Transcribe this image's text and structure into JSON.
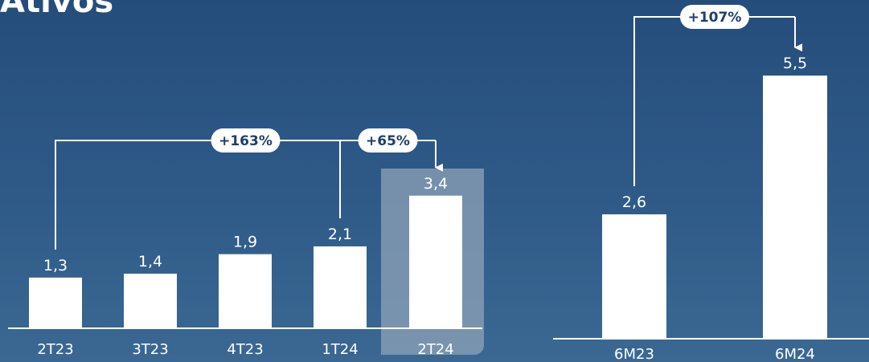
{
  "page": {
    "title": "Ativos"
  },
  "colors": {
    "background_top": "#254d7c",
    "background_bottom": "#3b6893",
    "bar": "#ffffff",
    "highlight": "#8fa3b8",
    "badge_text": "#1f3f6b"
  },
  "chart_data": [
    {
      "type": "bar",
      "categories": [
        "2T23",
        "3T23",
        "4T23",
        "1T24",
        "2T24"
      ],
      "values": [
        1.3,
        1.4,
        1.9,
        2.1,
        3.4
      ],
      "value_labels": [
        "1,3",
        "1,4",
        "1,9",
        "2,1",
        "3,4"
      ],
      "highlight_category": "2T24",
      "ylim": [
        0,
        3.6
      ],
      "grid": false,
      "annotations": [
        {
          "from": "2T23",
          "to": "2T24",
          "label": "+163%"
        },
        {
          "from": "1T24",
          "to": "2T24",
          "label": "+65%"
        }
      ]
    },
    {
      "type": "bar",
      "categories": [
        "6M23",
        "6M24"
      ],
      "values": [
        2.6,
        5.5
      ],
      "value_labels": [
        "2,6",
        "5,5"
      ],
      "ylim": [
        0,
        5.5
      ],
      "grid": false,
      "annotations": [
        {
          "from": "6M23",
          "to": "6M24",
          "label": "+107%"
        }
      ]
    }
  ]
}
